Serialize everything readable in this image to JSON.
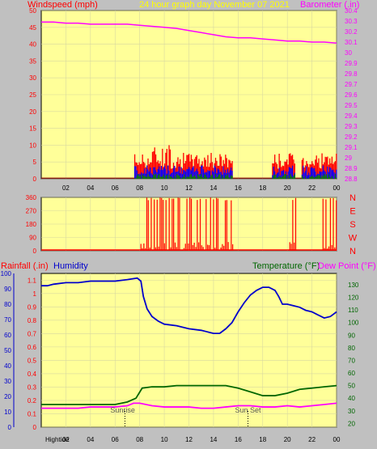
{
  "header": {
    "left_title": "Windspeed (mph)",
    "center_title": "24 hour graph day   November 07 2021",
    "right_title": "Barometer (.in)"
  },
  "panel3_header": {
    "rainfall_label": "Rainfall (.in)",
    "humidity_label": "Humidity",
    "temperature_label": "Temperature (°F)",
    "dewpoint_label": "Dew Point (°F)"
  },
  "annotations": {
    "sunrise": "Sunrise",
    "sunset": "Sun Set",
    "hightide": "Hightide"
  },
  "colors": {
    "plot_bg": "#ffff99",
    "frame": "#c0c0c0",
    "wind_gust": "#ff0000",
    "wind_avg": "#0000ff",
    "wind_low": "#008000",
    "barometer": "#ff00ff",
    "direction": "#ff0000",
    "humidity": "#0000cc",
    "temperature": "#006600",
    "dewpoint": "#ff00ff",
    "left_axis_red": "#ff0000",
    "left_axis_blue": "#0000cc",
    "right_axis_green": "#006600"
  },
  "chart_data": [
    {
      "type": "area",
      "id": "wind",
      "x_ticks": [
        "02",
        "04",
        "06",
        "08",
        "10",
        "12",
        "14",
        "16",
        "18",
        "20",
        "22",
        "00"
      ],
      "xlim": [
        0,
        24
      ],
      "y_left_ticks": [
        "0",
        "5",
        "10",
        "15",
        "20",
        "25",
        "30",
        "35",
        "40",
        "45",
        "50"
      ],
      "ylim_left": [
        0,
        50
      ],
      "y_right_ticks": [
        "28.8",
        "28.9",
        "29",
        "29.1",
        "29.2",
        "29.3",
        "29.4",
        "29.5",
        "29.6",
        "29.7",
        "29.8",
        "29.9",
        "30",
        "30.1",
        "30.2",
        "30.3",
        "30.4"
      ],
      "ylim_right": [
        28.8,
        30.4
      ],
      "series": [
        {
          "name": "Barometer",
          "axis": "right",
          "x": [
            0,
            1,
            2,
            3,
            4,
            5,
            6,
            7,
            8,
            9,
            10,
            11,
            12,
            13,
            14,
            15,
            16,
            17,
            18,
            19,
            20,
            21,
            22,
            23,
            24
          ],
          "values": [
            30.29,
            30.29,
            30.28,
            30.28,
            30.27,
            30.27,
            30.27,
            30.27,
            30.26,
            30.25,
            30.24,
            30.23,
            30.21,
            30.19,
            30.17,
            30.15,
            30.14,
            30.14,
            30.13,
            30.12,
            30.11,
            30.11,
            30.1,
            30.1,
            30.09
          ]
        }
      ],
      "wind_active_ranges": [
        [
          7.6,
          15.6
        ],
        [
          18.8,
          20.6
        ],
        [
          21.2,
          24
        ]
      ],
      "wind_gust_typical": [
        3,
        9
      ],
      "wind_avg_typical": [
        1,
        4
      ]
    },
    {
      "type": "line",
      "id": "direction",
      "x_ticks": [
        "02",
        "04",
        "06",
        "08",
        "10",
        "12",
        "14",
        "16",
        "18",
        "20",
        "22",
        "00"
      ],
      "xlim": [
        0,
        24
      ],
      "y_left_ticks": [
        "0",
        "90",
        "180",
        "270",
        "360"
      ],
      "ylim": [
        0,
        360
      ],
      "right_labels": [
        "N",
        "W",
        "S",
        "E",
        "N"
      ],
      "active_ranges": [
        [
          8.1,
          10.2
        ],
        [
          10.4,
          15.6
        ],
        [
          20.2,
          20.8
        ],
        [
          22.9,
          24
        ]
      ]
    },
    {
      "type": "line",
      "id": "temp_humidity",
      "x_ticks": [
        "02",
        "04",
        "06",
        "08",
        "10",
        "12",
        "14",
        "16",
        "18",
        "20",
        "22",
        "00"
      ],
      "xlim": [
        0,
        24
      ],
      "y_humidity_ticks": [
        "0",
        "10",
        "20",
        "30",
        "40",
        "50",
        "60",
        "70",
        "80",
        "90",
        "100"
      ],
      "ylim_humidity": [
        0,
        100
      ],
      "y_rain_ticks": [
        "0",
        "0.1",
        "0.2",
        "0.3",
        "0.4",
        "0.5",
        "0.6",
        "0.7",
        "0.8",
        "0.9",
        "1",
        "1.1"
      ],
      "ylim_rain": [
        0,
        1.15
      ],
      "y_temp_ticks": [
        "20",
        "30",
        "40",
        "50",
        "60",
        "70",
        "80",
        "90",
        "100",
        "110",
        "120",
        "130"
      ],
      "ylim_temp": [
        17,
        139
      ],
      "series": [
        {
          "name": "Humidity",
          "axis": "humidity",
          "x": [
            0,
            0.5,
            1,
            2,
            3,
            4,
            5,
            6,
            7,
            7.8,
            8.1,
            8.3,
            8.6,
            9,
            9.5,
            10,
            11,
            12,
            13,
            14,
            14.5,
            15,
            15.5,
            16,
            16.5,
            17,
            17.5,
            18,
            18.5,
            19,
            19.3,
            19.6,
            20,
            20.5,
            21,
            21.5,
            22,
            22.5,
            23,
            23.5,
            24
          ],
          "values": [
            92,
            92,
            93,
            94,
            94,
            95,
            95,
            95,
            96,
            97,
            95,
            85,
            77,
            72,
            69,
            67,
            66,
            64,
            63,
            61,
            61,
            64,
            68,
            75,
            81,
            86,
            89,
            91,
            91,
            89,
            85,
            80,
            80,
            79,
            78,
            76,
            75,
            73,
            71,
            72,
            75
          ]
        },
        {
          "name": "Temperature",
          "axis": "temp",
          "x": [
            0,
            1,
            2,
            3,
            4,
            5,
            6,
            7,
            7.7,
            8.2,
            9,
            10,
            11,
            12,
            13,
            14,
            15,
            16,
            17,
            18,
            19,
            20,
            21,
            22,
            23,
            24
          ],
          "values": [
            35,
            35,
            35,
            35,
            35,
            35,
            35,
            37,
            40,
            48,
            49,
            49,
            50,
            50,
            50,
            50,
            50,
            48,
            45,
            42,
            42,
            44,
            47,
            48,
            49,
            50
          ]
        },
        {
          "name": "Dew Point",
          "axis": "temp",
          "x": [
            0,
            1,
            2,
            3,
            4,
            5,
            6,
            7,
            7.5,
            8,
            9,
            10,
            11,
            12,
            13,
            14,
            15,
            16,
            17,
            18,
            19,
            20,
            21,
            22,
            23,
            24
          ],
          "values": [
            32,
            32,
            32,
            32,
            33,
            33,
            33,
            34,
            36,
            36,
            34,
            33,
            33,
            33,
            32,
            32,
            33,
            34,
            34,
            33,
            33,
            34,
            33,
            34,
            35,
            36
          ]
        }
      ],
      "sunrise_hour": 6.8,
      "sunset_hour": 16.8
    }
  ]
}
